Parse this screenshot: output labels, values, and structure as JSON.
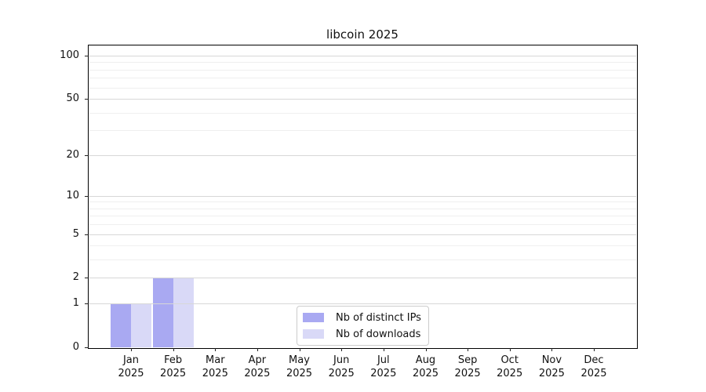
{
  "chart_data": {
    "type": "bar",
    "title": "libcoin 2025",
    "categories": [
      "Jan",
      "Feb",
      "Mar",
      "Apr",
      "May",
      "Jun",
      "Jul",
      "Aug",
      "Sep",
      "Oct",
      "Nov",
      "Dec"
    ],
    "category_year": "2025",
    "series": [
      {
        "name": "Nb of distinct IPs",
        "color": "#a9a9f2",
        "values": [
          1,
          2,
          0,
          0,
          0,
          0,
          0,
          0,
          0,
          0,
          0,
          0
        ]
      },
      {
        "name": "Nb of downloads",
        "color": "#d9d9f7",
        "values": [
          1,
          2,
          0,
          0,
          0,
          0,
          0,
          0,
          0,
          0,
          0,
          0
        ]
      }
    ],
    "xlabel": "",
    "ylabel": "",
    "y_scale": "log1p",
    "ylim": [
      0,
      117.5
    ],
    "y_major_ticks": [
      0,
      1,
      2,
      5,
      10,
      20,
      50,
      100
    ],
    "y_minor_gridlines": [
      3,
      4,
      6,
      7,
      8,
      9,
      30,
      40,
      60,
      70,
      80,
      90
    ],
    "grid": true,
    "legend_position": "lower center",
    "colors": {
      "major_grid": "#d7d7d7",
      "minor_grid": "#efefef",
      "spine": "#000000",
      "text": "#111111"
    }
  }
}
